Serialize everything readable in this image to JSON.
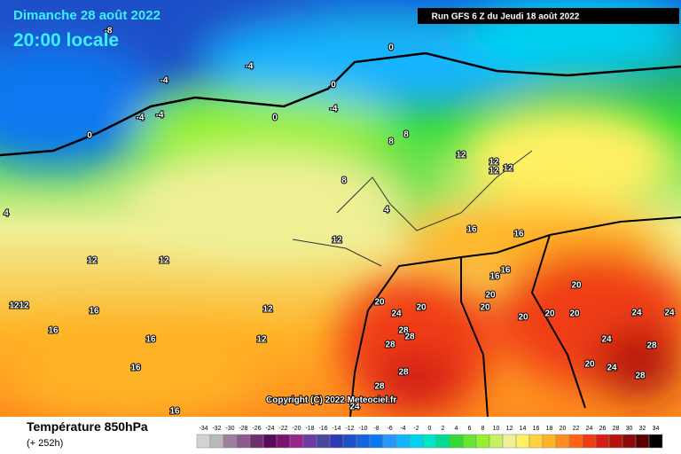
{
  "header": {
    "title": "Dimanche 28 août 2022",
    "time": "20:00 locale",
    "run": "Run GFS 6 Z du Jeudi 18 août 2022"
  },
  "copyright": "Copyright (C) 2022 Meteociel.fr",
  "footer": {
    "title": "Température 850hPa",
    "subtitle": "(+ 252h)"
  },
  "contour_labels": [
    -8,
    0,
    -4,
    -4,
    0,
    -4,
    -4,
    -4,
    0,
    0,
    8,
    8,
    12,
    12,
    12,
    12,
    8,
    4,
    4,
    12,
    16,
    16,
    12,
    12,
    16,
    16,
    12,
    12,
    16,
    20,
    20,
    20,
    20,
    20,
    24,
    20,
    20,
    20,
    24,
    24,
    12,
    16,
    16,
    12,
    28,
    28,
    28,
    24,
    28,
    16,
    28,
    20,
    24,
    28,
    28,
    16,
    24
  ],
  "legend": {
    "values": [
      -34,
      -32,
      -30,
      -28,
      -26,
      -24,
      -22,
      -20,
      -18,
      -16,
      -14,
      -12,
      -10,
      -8,
      -6,
      -4,
      -2,
      0,
      2,
      4,
      6,
      8,
      10,
      12,
      14,
      16,
      18,
      20,
      22,
      24,
      26,
      28,
      30,
      32,
      34
    ],
    "colors": [
      "#d2d2d2",
      "#b9b9b9",
      "#9b7f9b",
      "#8c5a8c",
      "#6e2f6e",
      "#5a0a5a",
      "#78146e",
      "#96288c",
      "#6e3ca0",
      "#4b46a0",
      "#2d3cb4",
      "#1e50c8",
      "#1464dc",
      "#0a78f0",
      "#2896ff",
      "#14b4ff",
      "#00d2f0",
      "#00e6c8",
      "#00dc96",
      "#32dc32",
      "#64e632",
      "#96f032",
      "#c8f064",
      "#f0f096",
      "#fff064",
      "#ffd23c",
      "#ffb428",
      "#ff8c1e",
      "#ff6414",
      "#f03c14",
      "#d21e14",
      "#b4140a",
      "#8c0a0a",
      "#5a0000",
      "#000000"
    ]
  }
}
